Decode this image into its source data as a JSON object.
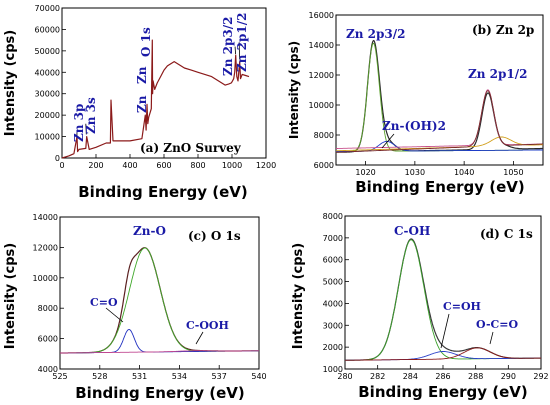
{
  "chart_data": [
    {
      "panel": "a",
      "type": "line",
      "title": "(a) ZnO Survey",
      "xlabel": "Binding Energy (eV)",
      "ylabel": "Intensity (cps)",
      "xlim": [
        0,
        1200
      ],
      "ylim": [
        0,
        70000
      ],
      "xticks": [
        "0",
        "200",
        "400",
        "600",
        "800",
        "1000",
        "1200"
      ],
      "yticks": [
        "0",
        "10000",
        "20000",
        "30000",
        "40000",
        "50000",
        "60000",
        "70000"
      ],
      "annotations": [
        {
          "text": "Zn 3p",
          "x": 88,
          "y": 9000
        },
        {
          "text": "Zn 3s",
          "x": 140,
          "y": 12000
        },
        {
          "text": "Zn",
          "x": 500,
          "y": 24000
        },
        {
          "text": "Zn",
          "x": 498,
          "y": 36000
        },
        {
          "text": "O 1s",
          "x": 531,
          "y": 50000
        },
        {
          "text": "Zn 2p3/2",
          "x": 1022,
          "y": 42000
        },
        {
          "text": "Zn 2p1/2",
          "x": 1045,
          "y": 44000
        }
      ],
      "series": [
        {
          "color": "#8b1a1a",
          "x": [
            0,
            40,
            70,
            88,
            92,
            100,
            140,
            145,
            160,
            200,
            260,
            285,
            288,
            300,
            400,
            470,
            490,
            495,
            500,
            505,
            510,
            525,
            531,
            533,
            536,
            545,
            560,
            580,
            600,
            620,
            640,
            660,
            680,
            700,
            720,
            760,
            800,
            840,
            880,
            920,
            960,
            980,
            995,
            1000,
            1010,
            1016,
            1022,
            1028,
            1035,
            1045,
            1050,
            1060,
            1080,
            1100
          ],
          "y": [
            0,
            1000,
            2000,
            10000,
            3000,
            4000,
            4500,
            10000,
            4000,
            5000,
            7000,
            7000,
            27000,
            8000,
            8000,
            9000,
            20000,
            13000,
            25000,
            16000,
            19000,
            23000,
            55000,
            30000,
            36000,
            32000,
            35000,
            38000,
            41000,
            43000,
            44000,
            45000,
            44000,
            43000,
            42000,
            41000,
            40000,
            39000,
            38000,
            36000,
            34000,
            34500,
            35000,
            35500,
            37000,
            40000,
            48000,
            38000,
            36000,
            45000,
            37000,
            39000,
            38500,
            38000
          ]
        }
      ]
    },
    {
      "panel": "b",
      "type": "line",
      "title": "(b) Zn 2p",
      "xlabel": "Binding Energy (eV)",
      "ylabel": "Intensity (cps)",
      "xlim": [
        1014,
        1056
      ],
      "ylim": [
        6000,
        16000
      ],
      "xticks": [
        "1020",
        "1030",
        "1040",
        "1050"
      ],
      "yticks": [
        "6000",
        "8000",
        "10000",
        "12000",
        "14000",
        "16000"
      ],
      "annotations": [
        {
          "text": "Zn 2p3/2",
          "x": 1021.5,
          "y": 14800
        },
        {
          "text": "Zn-(OH)2",
          "x": 1028,
          "y": 8200
        },
        {
          "text": "Zn 2p1/2",
          "x": 1045,
          "y": 11800
        }
      ],
      "series": [
        {
          "type": "gaussian-sum",
          "color": "#2a2a2a",
          "baseline": [
            6850,
            7100
          ],
          "peaks": [
            [
              1021.6,
              7250,
              1.2
            ],
            [
              1024.3,
              650,
              1.6
            ],
            [
              1044.8,
              3700,
              1.2
            ],
            [
              1047.5,
              300,
              1.6
            ]
          ]
        },
        {
          "type": "gaussian",
          "color": "#5aa02c",
          "baseline": [
            6900,
            7000
          ],
          "peaks": [
            [
              1021.6,
              7200,
              1.2
            ]
          ]
        },
        {
          "type": "gaussian",
          "color": "#1e3cc8",
          "baseline": [
            6900,
            7000
          ],
          "peaks": [
            [
              1024.3,
              650,
              1.6
            ]
          ]
        },
        {
          "type": "gaussian",
          "color": "#c8508c",
          "baseline": [
            7100,
            7400
          ],
          "peaks": [
            [
              1044.8,
              3700,
              1.2
            ]
          ]
        },
        {
          "type": "gaussian",
          "color": "#d2a01e",
          "baseline": [
            6950,
            7350
          ],
          "peaks": [
            [
              1047.5,
              600,
              2.0
            ]
          ]
        },
        {
          "type": "gaussian",
          "color": "#7a2a2a",
          "baseline": [
            6850,
            7400
          ],
          "peaks": [
            [
              1044.8,
              3700,
              1.25
            ]
          ]
        }
      ]
    },
    {
      "panel": "c",
      "type": "line",
      "title": "(c) O 1s",
      "xlabel": "Binding Energy (eV)",
      "ylabel": "Intensity (cps)",
      "xlim": [
        525,
        540
      ],
      "ylim": [
        4000,
        14000
      ],
      "xticks": [
        "525",
        "528",
        "531",
        "534",
        "537",
        "540"
      ],
      "yticks": [
        "4000",
        "6000",
        "8000",
        "10000",
        "12000",
        "14000"
      ],
      "annotations": [
        {
          "text": "Zn-O",
          "x": 531.2,
          "y": 12800
        },
        {
          "text": "C=O",
          "x": 528.6,
          "y": 8400
        },
        {
          "text": "C-OOH",
          "x": 536.5,
          "y": 6900
        }
      ],
      "series": [
        {
          "type": "gaussian-sum",
          "color": "#5a2020",
          "baseline": [
            5050,
            5200
          ],
          "peaks": [
            [
              531.4,
              6850,
              1.15
            ],
            [
              530.2,
              1500,
              0.4
            ],
            [
              535.2,
              50,
              1.2
            ]
          ]
        },
        {
          "type": "gaussian",
          "color": "#3fa82a",
          "baseline": [
            5050,
            5200
          ],
          "peaks": [
            [
              531.4,
              6850,
              1.15
            ]
          ]
        },
        {
          "type": "gaussian",
          "color": "#2030c0",
          "baseline": [
            5050,
            5200
          ],
          "peaks": [
            [
              530.2,
              1500,
              0.4
            ]
          ]
        },
        {
          "type": "gaussian",
          "color": "#c04890",
          "baseline": [
            5050,
            5200
          ],
          "peaks": [
            [
              535.2,
              50,
              1.2
            ]
          ]
        }
      ]
    },
    {
      "panel": "d",
      "type": "line",
      "title": "(d) C 1s",
      "xlabel": "Binding Energy (eV)",
      "ylabel": "Intensity (cps)",
      "xlim": [
        280,
        292
      ],
      "ylim": [
        1000,
        8000
      ],
      "xticks": [
        "280",
        "282",
        "284",
        "286",
        "288",
        "290",
        "292"
      ],
      "yticks": [
        "1000",
        "2000",
        "3000",
        "4000",
        "5000",
        "6000",
        "7000",
        "8000"
      ],
      "annotations": [
        {
          "text": "C-OH",
          "x": 284,
          "y": 7400
        },
        {
          "text": "C=OH",
          "x": 286.8,
          "y": 4100
        },
        {
          "text": "O-C=O",
          "x": 288.8,
          "y": 3200
        }
      ],
      "series": [
        {
          "type": "gaussian-sum",
          "color": "#3a3a3a",
          "baseline": [
            1400,
            1500
          ],
          "peaks": [
            [
              284.05,
              5500,
              0.78
            ],
            [
              286.0,
              350,
              0.8
            ],
            [
              288.1,
              500,
              0.8
            ]
          ]
        },
        {
          "type": "gaussian",
          "color": "#3aa02a",
          "baseline": [
            1400,
            1500
          ],
          "peaks": [
            [
              284.05,
              5480,
              0.78
            ]
          ]
        },
        {
          "type": "gaussian",
          "color": "#2a40c8",
          "baseline": [
            1400,
            1500
          ],
          "peaks": [
            [
              286.0,
              350,
              0.8
            ]
          ]
        },
        {
          "type": "gaussian",
          "color": "#8b1a1a",
          "baseline": [
            1400,
            1500
          ],
          "peaks": [
            [
              288.1,
              500,
              0.8
            ]
          ]
        }
      ]
    }
  ]
}
